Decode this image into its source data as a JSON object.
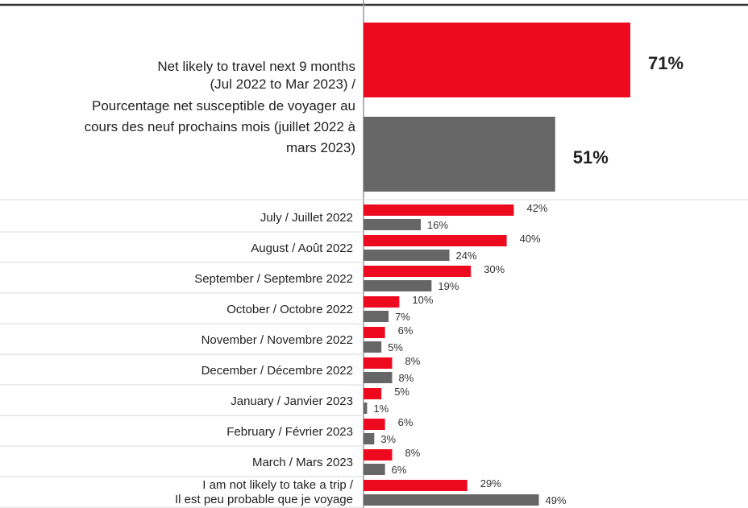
{
  "chart_data": {
    "type": "bar",
    "orientation": "horizontal",
    "colors": {
      "series_a": "#ee0a1e",
      "series_b": "#666666",
      "axis": "#999999",
      "rule": "#333333"
    },
    "summary": {
      "label_lines": [
        "Net likely to travel next 9 months",
        "(Jul 2022 to Mar 2023) /",
        "Pourcentage net susceptible de voyager au",
        "cours des neuf prochains mois (juillet 2022 à",
        "mars 2023)"
      ],
      "values": [
        71,
        51
      ],
      "value_labels": [
        "71%",
        "51%"
      ]
    },
    "categories": [
      [
        "July / Juillet 2022"
      ],
      [
        "August / Août 2022"
      ],
      [
        "September / Septembre 2022"
      ],
      [
        "October / Octobre 2022"
      ],
      [
        "November / Novembre 2022"
      ],
      [
        "December / Décembre 2022"
      ],
      [
        "January / Janvier 2023"
      ],
      [
        "February / Février  2023"
      ],
      [
        "March / Mars  2023"
      ],
      [
        "I am not likely to take a trip /",
        "Il est peu probable que je voyage"
      ]
    ],
    "series": [
      {
        "values": [
          42,
          40,
          30,
          10,
          6,
          8,
          5,
          6,
          8,
          29
        ],
        "value_labels": [
          "42%",
          "40%",
          "30%",
          "10%",
          "6%",
          "8%",
          "5%",
          "6%",
          "8%",
          "29%"
        ]
      },
      {
        "values": [
          16,
          24,
          19,
          7,
          5,
          8,
          1,
          3,
          6,
          49
        ],
        "value_labels": [
          "16%",
          "24%",
          "19%",
          "7%",
          "5%",
          "8%",
          "1%",
          "3%",
          "6%",
          "49%"
        ]
      }
    ],
    "xlim": [
      0,
      100
    ],
    "grid": false,
    "legend": "none"
  }
}
